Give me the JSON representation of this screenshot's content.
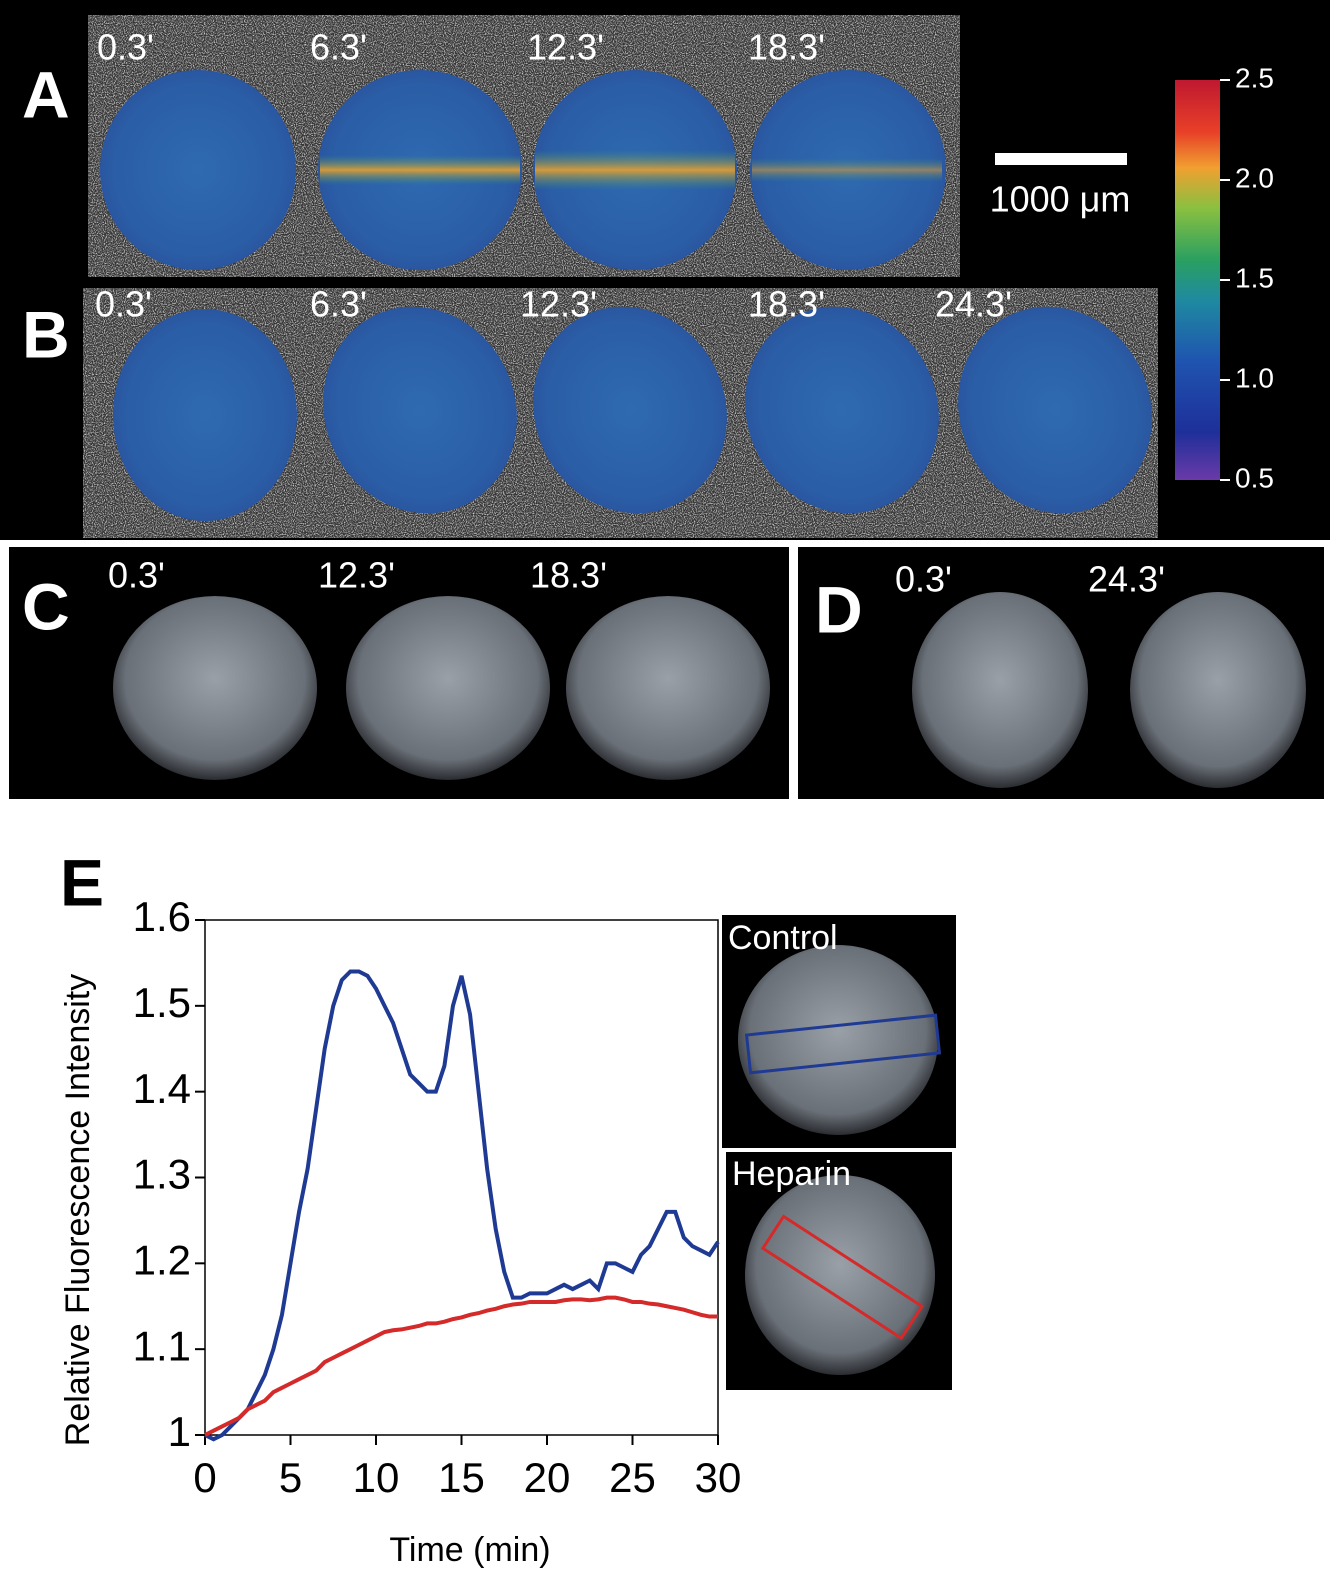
{
  "panels": {
    "A": {
      "label": "A",
      "times": [
        "0.3'",
        "6.3'",
        "12.3'",
        "18.3'"
      ]
    },
    "B": {
      "label": "B",
      "times": [
        "0.3'",
        "6.3'",
        "12.3'",
        "18.3'",
        "24.3'"
      ]
    },
    "C": {
      "label": "C",
      "times": [
        "0.3'",
        "12.3'",
        "18.3'"
      ]
    },
    "D": {
      "label": "D",
      "times": [
        "0.3'",
        "24.3'"
      ]
    }
  },
  "scale_bar": "1000 μm",
  "colorbar": {
    "ticks": [
      2.5,
      {
        "value": 2,
        "label": "2.0"
      },
      1.5,
      {
        "value": 1,
        "label": "1.0"
      },
      0.5
    ],
    "lim": [
      0.5,
      2.5
    ]
  },
  "chart_data": {
    "type": "line",
    "panel_label": "E",
    "xlabel": "Time (min)",
    "ylabel": "Relative Fluorescence Intensity",
    "xlim": [
      0,
      30
    ],
    "ylim": [
      1,
      1.6
    ],
    "xticks": [
      0,
      5,
      10,
      15,
      20,
      25,
      30
    ],
    "yticks": [
      1,
      1.1,
      1.2,
      1.3,
      1.4,
      1.5,
      1.6
    ],
    "x": [
      0,
      0.5,
      1,
      1.5,
      2,
      2.5,
      3,
      3.5,
      4,
      4.5,
      5,
      5.5,
      6,
      6.5,
      7,
      7.5,
      8,
      8.5,
      9,
      9.5,
      10,
      10.5,
      11,
      11.5,
      12,
      12.5,
      13,
      13.5,
      14,
      14.5,
      15,
      15.5,
      16,
      16.5,
      17,
      17.5,
      18,
      18.5,
      19,
      19.5,
      20,
      20.5,
      21,
      21.5,
      22,
      22.5,
      23,
      23.5,
      24,
      24.5,
      25,
      25.5,
      26,
      26.5,
      27,
      27.5,
      28,
      28.5,
      29,
      29.5,
      30
    ],
    "series": [
      {
        "name": "Control",
        "color": "#1f3a93",
        "values": [
          1.0,
          0.995,
          1.0,
          1.01,
          1.02,
          1.03,
          1.05,
          1.07,
          1.1,
          1.14,
          1.2,
          1.26,
          1.31,
          1.38,
          1.45,
          1.5,
          1.53,
          1.54,
          1.54,
          1.535,
          1.52,
          1.5,
          1.48,
          1.45,
          1.42,
          1.41,
          1.4,
          1.4,
          1.43,
          1.5,
          1.535,
          1.49,
          1.4,
          1.31,
          1.24,
          1.19,
          1.16,
          1.16,
          1.165,
          1.165,
          1.165,
          1.17,
          1.175,
          1.17,
          1.175,
          1.18,
          1.17,
          1.2,
          1.2,
          1.195,
          1.19,
          1.21,
          1.22,
          1.24,
          1.26,
          1.26,
          1.23,
          1.22,
          1.215,
          1.21,
          1.225
        ]
      },
      {
        "name": "Heparin",
        "color": "#d42a2a",
        "values": [
          1.0,
          1.005,
          1.01,
          1.015,
          1.02,
          1.03,
          1.035,
          1.04,
          1.05,
          1.055,
          1.06,
          1.065,
          1.07,
          1.075,
          1.085,
          1.09,
          1.095,
          1.1,
          1.105,
          1.11,
          1.115,
          1.12,
          1.122,
          1.123,
          1.125,
          1.127,
          1.13,
          1.13,
          1.132,
          1.135,
          1.137,
          1.14,
          1.142,
          1.145,
          1.147,
          1.15,
          1.152,
          1.153,
          1.155,
          1.155,
          1.155,
          1.155,
          1.157,
          1.158,
          1.158,
          1.157,
          1.158,
          1.16,
          1.16,
          1.158,
          1.155,
          1.155,
          1.153,
          1.152,
          1.15,
          1.148,
          1.146,
          1.143,
          1.14,
          1.138,
          1.138
        ]
      }
    ]
  }
}
